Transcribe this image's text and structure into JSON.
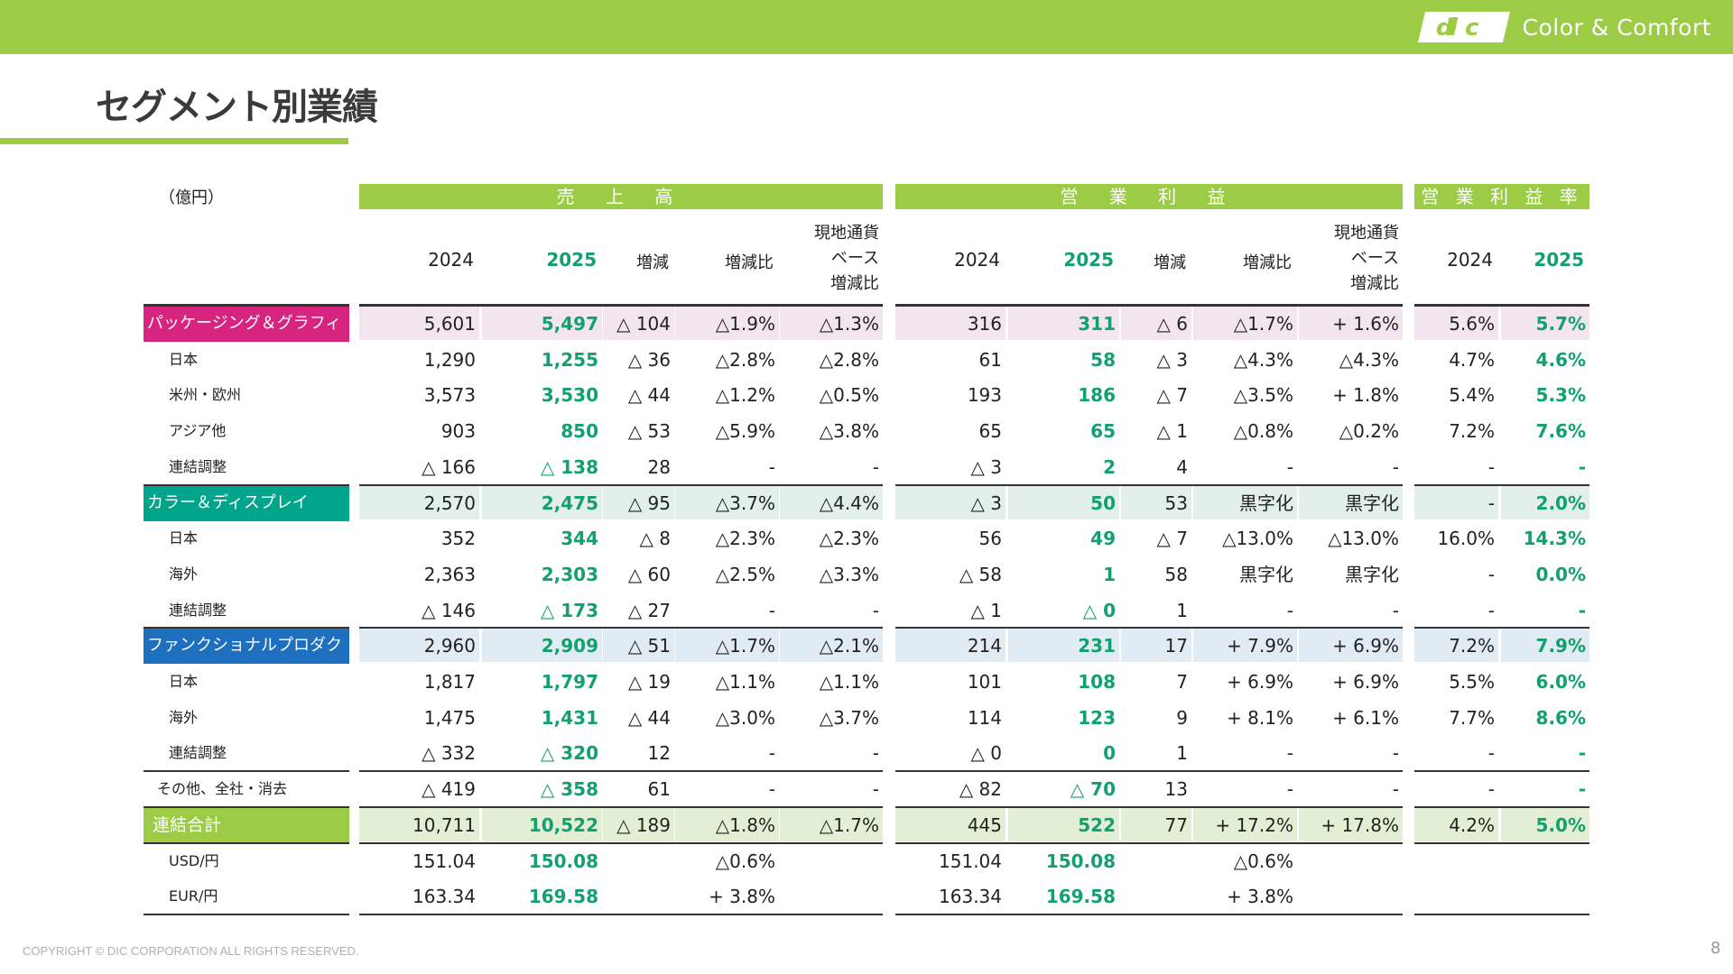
{
  "brand": {
    "tagline": "Color & Comfort",
    "accent": "#9ccc45",
    "green_text": "#12a06e",
    "segment_colors": {
      "pkg": "#d6247f",
      "color": "#00a58c",
      "func": "#1f6fc0"
    }
  },
  "page": {
    "title": "セグメント別業績",
    "unit": "（億円）",
    "copyright": "COPYRIGHT © DIC CORPORATION ALL RIGHTS RESERVED.",
    "page_number": "8"
  },
  "groups": {
    "sales": "売 上 高",
    "op": "営 業 利 益",
    "margin": "営 業 利 益 率"
  },
  "headers": {
    "y2024": "2024",
    "y2025": "2025",
    "change": "増減",
    "change_ratio": "増減比",
    "local_line1": "現地通貨",
    "local_line2": "ベース",
    "local_line3": "増減比"
  },
  "rows": [
    {
      "label": "パッケージング＆グラフィック",
      "kind": "seg",
      "color": "#d6247f",
      "tint": "#f3e5ee",
      "v": [
        "5,601",
        "5,497",
        "△ 104",
        "△1.9%",
        "△1.3%",
        "316",
        "311",
        "△ 6",
        "△1.7%",
        "+ 1.6%",
        "5.6%",
        "5.7%"
      ]
    },
    {
      "label": "日本",
      "kind": "sub",
      "v": [
        "1,290",
        "1,255",
        "△ 36",
        "△2.8%",
        "△2.8%",
        "61",
        "58",
        "△ 3",
        "△4.3%",
        "△4.3%",
        "4.7%",
        "4.6%"
      ]
    },
    {
      "label": "米州・欧州",
      "kind": "sub",
      "v": [
        "3,573",
        "3,530",
        "△ 44",
        "△1.2%",
        "△0.5%",
        "193",
        "186",
        "△ 7",
        "△3.5%",
        "+ 1.8%",
        "5.4%",
        "5.3%"
      ]
    },
    {
      "label": "アジア他",
      "kind": "sub",
      "v": [
        "903",
        "850",
        "△ 53",
        "△5.9%",
        "△3.8%",
        "65",
        "65",
        "△ 1",
        "△0.8%",
        "△0.2%",
        "7.2%",
        "7.6%"
      ]
    },
    {
      "label": "連結調整",
      "kind": "sub",
      "v": [
        "△ 166",
        "△ 138",
        "28",
        "-",
        "-",
        "△ 3",
        "2",
        "4",
        "-",
        "-",
        "-",
        "-"
      ]
    },
    {
      "label": "カラー＆ディスプレイ",
      "kind": "seg",
      "color": "#00a58c",
      "tint": "#e3efea",
      "v": [
        "2,570",
        "2,475",
        "△ 95",
        "△3.7%",
        "△4.4%",
        "△ 3",
        "50",
        "53",
        "黒字化",
        "黒字化",
        "-",
        "2.0%"
      ]
    },
    {
      "label": "日本",
      "kind": "sub",
      "v": [
        "352",
        "344",
        "△ 8",
        "△2.3%",
        "△2.3%",
        "56",
        "49",
        "△ 7",
        "△13.0%",
        "△13.0%",
        "16.0%",
        "14.3%"
      ]
    },
    {
      "label": "海外",
      "kind": "sub",
      "v": [
        "2,363",
        "2,303",
        "△ 60",
        "△2.5%",
        "△3.3%",
        "△ 58",
        "1",
        "58",
        "黒字化",
        "黒字化",
        "-",
        "0.0%"
      ]
    },
    {
      "label": "連結調整",
      "kind": "sub",
      "v": [
        "△ 146",
        "△ 173",
        "△ 27",
        "-",
        "-",
        "△ 1",
        "△ 0",
        "1",
        "-",
        "-",
        "-",
        "-"
      ]
    },
    {
      "label": "ファンクショナルプロダクツ",
      "kind": "seg",
      "color": "#1f6fc0",
      "tint": "#e1ebf3",
      "v": [
        "2,960",
        "2,909",
        "△ 51",
        "△1.7%",
        "△2.1%",
        "214",
        "231",
        "17",
        "+ 7.9%",
        "+ 6.9%",
        "7.2%",
        "7.9%"
      ]
    },
    {
      "label": "日本",
      "kind": "sub",
      "v": [
        "1,817",
        "1,797",
        "△ 19",
        "△1.1%",
        "△1.1%",
        "101",
        "108",
        "7",
        "+ 6.9%",
        "+ 6.9%",
        "5.5%",
        "6.0%"
      ]
    },
    {
      "label": "海外",
      "kind": "sub",
      "v": [
        "1,475",
        "1,431",
        "△ 44",
        "△3.0%",
        "△3.7%",
        "114",
        "123",
        "9",
        "+ 8.1%",
        "+ 6.1%",
        "7.7%",
        "8.6%"
      ]
    },
    {
      "label": "連結調整",
      "kind": "sub",
      "v": [
        "△ 332",
        "△ 320",
        "12",
        "-",
        "-",
        "△ 0",
        "0",
        "1",
        "-",
        "-",
        "-",
        "-"
      ]
    },
    {
      "label": "その他、全社・消去",
      "kind": "other",
      "v": [
        "△ 419",
        "△ 358",
        "61",
        "-",
        "-",
        "△ 82",
        "△ 70",
        "13",
        "-",
        "-",
        "-",
        "-"
      ]
    },
    {
      "label": "連結合計",
      "kind": "total",
      "tint": "#e2efd4",
      "v": [
        "10,711",
        "10,522",
        "△ 189",
        "△1.8%",
        "△1.7%",
        "445",
        "522",
        "77",
        "+ 17.2%",
        "+ 17.8%",
        "4.2%",
        "5.0%"
      ]
    },
    {
      "label": "USD/円",
      "kind": "fx",
      "v": [
        "151.04",
        "150.08",
        "",
        "△0.6%",
        "",
        "151.04",
        "150.08",
        "",
        "△0.6%",
        "",
        "",
        ""
      ]
    },
    {
      "label": "EUR/円",
      "kind": "fx",
      "v": [
        "163.34",
        "169.58",
        "",
        "+ 3.8%",
        "",
        "163.34",
        "169.58",
        "",
        "+ 3.8%",
        "",
        "",
        ""
      ]
    }
  ]
}
